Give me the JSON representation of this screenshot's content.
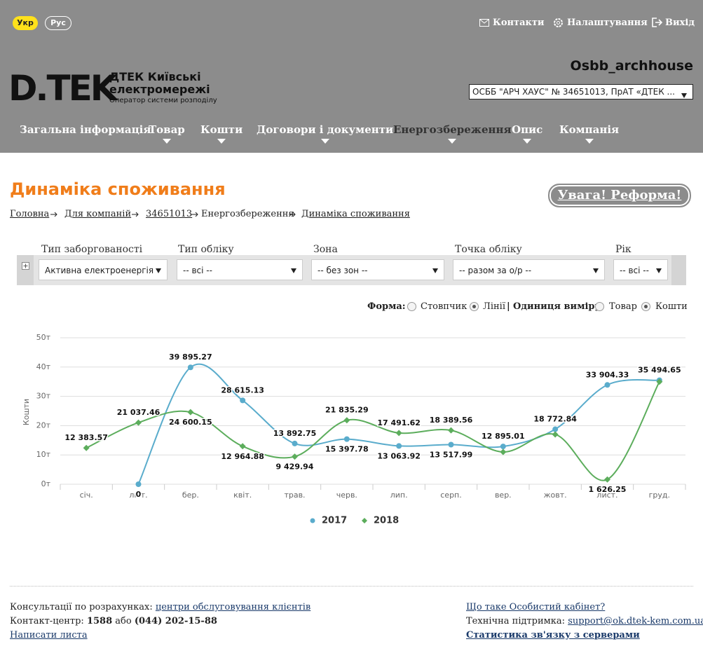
{
  "header": {
    "languages": [
      "Укр",
      "Рус"
    ],
    "links": [
      "Контакти",
      "Налаштування",
      "Вихід"
    ],
    "logo": "D.TEK",
    "company_name": [
      "ДТЕК Київські",
      "електромережі"
    ],
    "company_subtitle": "Оператор системи розподілу",
    "username": "Osbb_archhouse",
    "account_select": "ОСББ \"АРЧ ХАУС\" № 34651013, ПрАТ «ДТЕК ...",
    "nav": [
      "Загальна інформація",
      "Товар",
      "Кошти",
      "Договори і документи",
      "Енергозбереження",
      "Опис",
      "Компанія"
    ]
  },
  "page": {
    "title": "Динаміка споживання",
    "notice_button": "Увага! Реформа!",
    "breadcrumbs": [
      "Головна",
      "Для компаній",
      "34651013",
      "Енергозбереження",
      "Динаміка споживання"
    ]
  },
  "filters": [
    {
      "label": "Тип заборгованості",
      "value": "Активна електроенергія"
    },
    {
      "label": "Тип обліку",
      "value": "-- всі --"
    },
    {
      "label": "Зона",
      "value": "-- без зон --"
    },
    {
      "label": "Точка обліку",
      "value": "-- разом за о/р --"
    },
    {
      "label": "Рік",
      "value": "-- всі --"
    }
  ],
  "options": {
    "form_label": "Форма:",
    "form_options": [
      "Стовпчик",
      "Лінії"
    ],
    "separator": "|",
    "unit_label": "Одиниця виміру:",
    "unit_options": [
      "Товар",
      "Кошти"
    ]
  },
  "chart_data": {
    "type": "line",
    "y_label": "Кошти",
    "categories": [
      "січ.",
      "лют.",
      "бер.",
      "квіт.",
      "трав.",
      "черв.",
      "лип.",
      "серп.",
      "вер.",
      "жовт.",
      "лист.",
      "груд."
    ],
    "series": [
      {
        "name": "2017",
        "color": "#5aaccc",
        "values": [
          null,
          0,
          39895.27,
          28615.13,
          13892.75,
          15397.78,
          13063.92,
          13517.99,
          12895.01,
          18772.84,
          33904.33,
          35494.65
        ],
        "value_labels": [
          null,
          "0",
          "39 895.27",
          "28 615.13",
          "13 892.75",
          "15 397.78",
          "13 063.92",
          "13 517.99",
          "12 895.01",
          "18 772.84",
          "33 904.33",
          "35 494.65"
        ]
      },
      {
        "name": "2018",
        "color": "#5cad5c",
        "values": [
          12383.57,
          21037.46,
          24600.15,
          12964.88,
          9429.94,
          21835.29,
          17491.62,
          18389.56,
          11000,
          17000,
          1626.25,
          35000
        ],
        "value_labels": [
          "12 383.57",
          "21 037.46",
          "24 600.15",
          "12 964.88",
          "9 429.94",
          "21 835.29",
          "17 491.62",
          "18 389.56",
          null,
          null,
          "1 626.25",
          null
        ]
      }
    ],
    "ylim": [
      0,
      50000
    ],
    "yticks": [
      {
        "value": 0,
        "label": "0т"
      },
      {
        "value": 10000,
        "label": "10т"
      },
      {
        "value": 20000,
        "label": "20т"
      },
      {
        "value": 30000,
        "label": "30т"
      },
      {
        "value": 40000,
        "label": "40т"
      },
      {
        "value": 50000,
        "label": "50т"
      }
    ],
    "grid": true
  },
  "footer": {
    "consult_label": "Консультації по розрахунках:",
    "consult_link": "центри обслуговування клієнтів",
    "contact_label": "Контакт-центр:",
    "contact_short": "1588",
    "contact_or": "або",
    "contact_phone": "(044) 202-15-88",
    "write_link": "Написати листа",
    "about_link": "Що таке Особистий кабінет?",
    "support_label": "Технічна підтримка:",
    "support_link": "support@ok.dtek-kem.com.ua",
    "stats_link": "Статистика зв'язку з серверами"
  }
}
